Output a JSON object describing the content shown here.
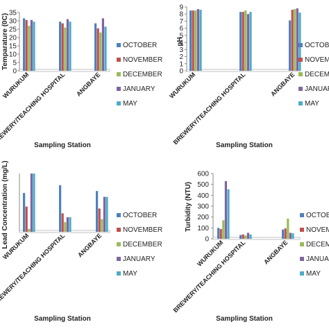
{
  "legend_entries": [
    "OCTOBER",
    "NOVEMBER",
    "DECEMBER",
    "JANUARY",
    "MAY"
  ],
  "series_colors": [
    "#4F81BD",
    "#C0504D",
    "#9BBB59",
    "#8064A2",
    "#4BACC6"
  ],
  "chart_data": [
    {
      "type": "bar",
      "categories": [
        "WURUKUM",
        "BREWERY/TEACHING HOSPITAL",
        "ANGBAYE"
      ],
      "ylabel": "Temparature (0C)",
      "xlabel": "Sampling Station",
      "ylim": [
        0,
        35
      ],
      "yticks": [
        0,
        5,
        10,
        15,
        20,
        25,
        30,
        35
      ],
      "legend": [
        "OCTOBER",
        "NOVEMBER",
        "DECEMBER",
        "JANUARY",
        "MAY"
      ],
      "series": [
        {
          "name": "OCTOBER",
          "values": [
            31.5,
            29.5,
            28.5
          ]
        },
        {
          "name": "NOVEMBER",
          "values": [
            30.5,
            28.5,
            25.5
          ]
        },
        {
          "name": "DECEMBER",
          "values": [
            27.0,
            26.0,
            23.0
          ]
        },
        {
          "name": "JANUARY",
          "values": [
            30.5,
            31.0,
            31.5
          ]
        },
        {
          "name": "MAY",
          "values": [
            29.5,
            29.5,
            26.5
          ]
        }
      ]
    },
    {
      "type": "bar",
      "categories": [
        "WURUKUM",
        "BREWERY/TEACHING HOSPITAL",
        "ANGBAYE"
      ],
      "ylabel": "pH",
      "xlabel": "Sampling Station",
      "ylim": [
        0,
        9
      ],
      "yticks": [
        0,
        1,
        2,
        3,
        4,
        5,
        6,
        7,
        8,
        9
      ],
      "legend": [
        "OCTOBER",
        "NOVEMBER",
        "DECEMBER",
        "JANUARY",
        "MAY"
      ],
      "series": [
        {
          "name": "OCTOBER",
          "values": [
            8.5,
            8.3,
            7.1
          ]
        },
        {
          "name": "NOVEMBER",
          "values": [
            8.5,
            8.3,
            8.6
          ]
        },
        {
          "name": "DECEMBER",
          "values": [
            8.5,
            8.5,
            8.7
          ]
        },
        {
          "name": "JANUARY",
          "values": [
            8.7,
            8.0,
            8.8
          ]
        },
        {
          "name": "MAY",
          "values": [
            8.6,
            8.3,
            8.2
          ]
        }
      ]
    },
    {
      "type": "bar",
      "categories": [
        "WURUKUM",
        "BREWERY/TEACHING HOSPITAL",
        "ANGBAYE"
      ],
      "ylabel": "Lead Concentration (mg/L)",
      "xlabel": "Sampling Station",
      "ylim": [
        0,
        0.6
      ],
      "yticks": [],
      "legend": [
        "OCTOBER",
        "NOVEMBER",
        "DECEMBER",
        "JANUARY",
        "MAY"
      ],
      "series": [
        {
          "name": "OCTOBER",
          "values": [
            0.4,
            0.48,
            0.42
          ]
        },
        {
          "name": "NOVEMBER",
          "values": [
            0.26,
            0.19,
            0.24
          ]
        },
        {
          "name": "DECEMBER",
          "values": [
            0.03,
            0.1,
            0.13
          ]
        },
        {
          "name": "JANUARY",
          "values": [
            0.6,
            0.15,
            0.36
          ]
        },
        {
          "name": "MAY",
          "values": [
            0.6,
            0.15,
            0.36
          ]
        }
      ]
    },
    {
      "type": "bar",
      "categories": [
        "WURUKUM",
        "BREWERY/TEACHING HOSPITAL",
        "ANGBAYE"
      ],
      "ylabel": "Turbidity (NTU)",
      "xlabel": "Sampling Station",
      "ylim": [
        0,
        600
      ],
      "yticks": [
        0,
        100,
        200,
        300,
        400,
        500,
        600
      ],
      "legend": [
        "OCTOBER",
        "NOVEMBER",
        "DECEMBER",
        "JANUARY",
        "MAY"
      ],
      "series": [
        {
          "name": "OCTOBER",
          "values": [
            100,
            35,
            85
          ]
        },
        {
          "name": "NOVEMBER",
          "values": [
            90,
            40,
            95
          ]
        },
        {
          "name": "DECEMBER",
          "values": [
            170,
            30,
            185
          ]
        },
        {
          "name": "JANUARY",
          "values": [
            530,
            55,
            55
          ]
        },
        {
          "name": "MAY",
          "values": [
            455,
            40,
            50
          ]
        }
      ]
    }
  ]
}
